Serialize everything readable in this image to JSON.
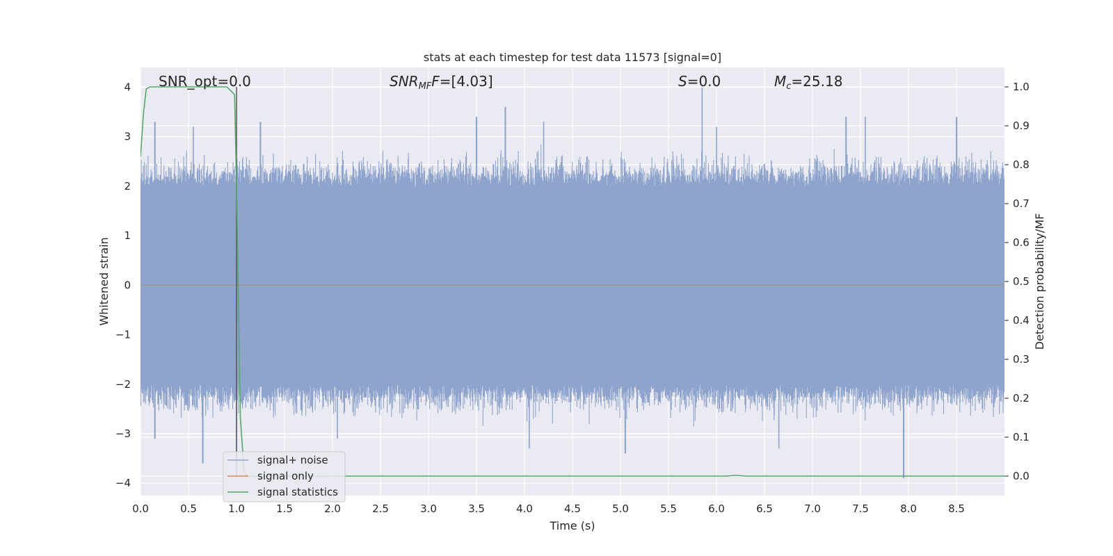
{
  "chart_data": {
    "type": "line",
    "title": "stats at each timestep for test data 11573 [signal=0]",
    "xlabel": "Time (s)",
    "ylabel": "Whitened strain",
    "ylabel_right": "Detection probability/MF",
    "xlim": [
      0.0,
      9.0
    ],
    "ylim": [
      -4.25,
      4.4
    ],
    "ylim_right": [
      -0.05,
      1.05
    ],
    "x_ticks": [
      "0.0",
      "0.5",
      "1.0",
      "1.5",
      "2.0",
      "2.5",
      "3.0",
      "3.5",
      "4.0",
      "4.5",
      "5.0",
      "5.5",
      "6.0",
      "6.5",
      "7.0",
      "7.5",
      "8.0",
      "8.5"
    ],
    "y_ticks": [
      "−4",
      "−3",
      "−2",
      "−1",
      "0",
      "1",
      "2",
      "3",
      "4"
    ],
    "y_ticks_right": [
      "0.0",
      "0.1",
      "0.2",
      "0.3",
      "0.4",
      "0.5",
      "0.6",
      "0.7",
      "0.8",
      "0.9",
      "1.0"
    ],
    "grid": true,
    "legend_position": "lower-left",
    "annotations": {
      "snr_opt": "SNR_opt=0.0",
      "snr_mf_main": "SNR",
      "snr_mf_sub": "MF",
      "snr_mf_rest": "=[4.03]",
      "s_main": "S",
      "s_rest": "=0.0",
      "mc_main": "M",
      "mc_sub": "c",
      "mc_rest": "=25.18"
    },
    "series": [
      {
        "name": "signal+ noise",
        "axis": "left",
        "color": "#8fa4cc",
        "style": "noise-envelope",
        "x": [
          0.0,
          9.0
        ],
        "y_typical_range": [
          -2.2,
          2.2
        ],
        "y_extremes": [
          -3.9,
          4.0
        ],
        "y_peaks": [
          [
            0.15,
            3.3
          ],
          [
            0.55,
            3.2
          ],
          [
            1.25,
            3.3
          ],
          [
            3.5,
            3.4
          ],
          [
            3.8,
            3.6
          ],
          [
            4.2,
            3.3
          ],
          [
            5.85,
            4.0
          ],
          [
            6.0,
            3.2
          ],
          [
            7.35,
            3.4
          ],
          [
            7.55,
            3.4
          ],
          [
            8.5,
            3.4
          ]
        ],
        "y_troughs": [
          [
            0.15,
            -3.1
          ],
          [
            0.65,
            -3.6
          ],
          [
            1.0,
            -3.5
          ],
          [
            2.05,
            -3.1
          ],
          [
            4.05,
            -3.3
          ],
          [
            5.05,
            -3.4
          ],
          [
            6.65,
            -3.3
          ],
          [
            7.95,
            -3.9
          ]
        ]
      },
      {
        "name": "signal only",
        "axis": "left",
        "color": "#dd8452",
        "x": [
          0.0,
          9.0
        ],
        "y": [
          0.0,
          0.0
        ]
      },
      {
        "name": "signal statistics",
        "axis": "right",
        "color": "#55a868",
        "x": [
          0.0,
          0.03,
          0.06,
          0.1,
          0.2,
          0.5,
          0.9,
          0.98,
          1.0,
          1.04,
          1.08,
          1.12,
          1.2,
          2.0,
          6.1,
          6.2,
          6.3,
          9.0
        ],
        "y": [
          0.82,
          0.93,
          0.995,
          1.0,
          1.0,
          1.0,
          1.0,
          0.98,
          0.75,
          0.15,
          0.01,
          0.0,
          0.0,
          0.0,
          0.0,
          0.002,
          0.0,
          0.0
        ]
      }
    ],
    "vertical_marker": {
      "x": 1.0,
      "color": "#555555"
    }
  }
}
